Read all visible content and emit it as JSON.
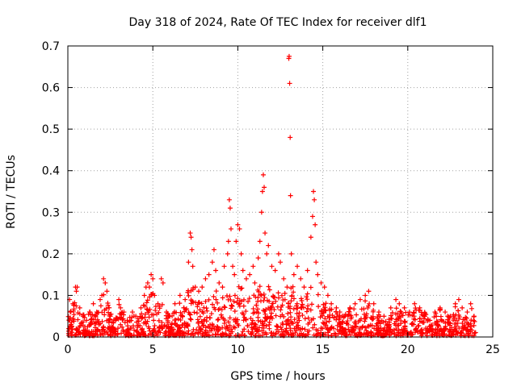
{
  "chart_data": {
    "type": "scatter",
    "title": "Day 318 of 2024, Rate Of TEC Index for receiver dlf1",
    "xlabel": "GPS time / hours",
    "ylabel": "ROTI / TECUs",
    "xlim": [
      0,
      25
    ],
    "ylim": [
      0,
      0.7
    ],
    "x_ticks": [
      0,
      5,
      10,
      15,
      20,
      25
    ],
    "y_ticks": [
      0,
      0.1,
      0.2,
      0.3,
      0.4,
      0.5,
      0.6,
      0.7
    ],
    "x_tick_labels": [
      "0",
      "5",
      "10",
      "15",
      "20",
      "25"
    ],
    "y_tick_labels": [
      "0",
      "0.1",
      "0.2",
      "0.3",
      "0.4",
      "0.5",
      "0.6",
      "0.7"
    ],
    "grid": true,
    "legend": "none",
    "marker": "plus",
    "series_color": "#ff0000",
    "points": [
      [
        0.05,
        0.02
      ],
      [
        0.1,
        0.09
      ],
      [
        0.15,
        0.06
      ],
      [
        0.3,
        0.08
      ],
      [
        0.45,
        0.12
      ],
      [
        0.5,
        0.11
      ],
      [
        0.55,
        0.12
      ],
      [
        0.7,
        0.07
      ],
      [
        0.9,
        0.05
      ],
      [
        1.1,
        0.04
      ],
      [
        1.3,
        0.06
      ],
      [
        1.5,
        0.08
      ],
      [
        1.7,
        0.06
      ],
      [
        1.9,
        0.09
      ],
      [
        2.0,
        0.1
      ],
      [
        2.1,
        0.14
      ],
      [
        2.2,
        0.13
      ],
      [
        2.3,
        0.11
      ],
      [
        2.5,
        0.05
      ],
      [
        2.8,
        0.04
      ],
      [
        3.0,
        0.09
      ],
      [
        3.1,
        0.07
      ],
      [
        3.3,
        0.06
      ],
      [
        3.5,
        0.04
      ],
      [
        3.8,
        0.06
      ],
      [
        4.0,
        0.05
      ],
      [
        4.3,
        0.07
      ],
      [
        4.5,
        0.1
      ],
      [
        4.6,
        0.12
      ],
      [
        4.7,
        0.13
      ],
      [
        4.8,
        0.12
      ],
      [
        4.9,
        0.15
      ],
      [
        5.0,
        0.14
      ],
      [
        5.1,
        0.1
      ],
      [
        5.3,
        0.08
      ],
      [
        5.5,
        0.14
      ],
      [
        5.6,
        0.13
      ],
      [
        5.8,
        0.06
      ],
      [
        6.0,
        0.05
      ],
      [
        6.3,
        0.08
      ],
      [
        6.6,
        0.1
      ],
      [
        6.9,
        0.09
      ],
      [
        7.1,
        0.18
      ],
      [
        7.2,
        0.25
      ],
      [
        7.25,
        0.24
      ],
      [
        7.3,
        0.21
      ],
      [
        7.35,
        0.17
      ],
      [
        7.5,
        0.12
      ],
      [
        7.7,
        0.11
      ],
      [
        7.9,
        0.12
      ],
      [
        8.1,
        0.14
      ],
      [
        8.3,
        0.15
      ],
      [
        8.5,
        0.18
      ],
      [
        8.6,
        0.21
      ],
      [
        8.7,
        0.16
      ],
      [
        8.9,
        0.13
      ],
      [
        9.1,
        0.12
      ],
      [
        9.2,
        0.17
      ],
      [
        9.4,
        0.2
      ],
      [
        9.45,
        0.23
      ],
      [
        9.5,
        0.33
      ],
      [
        9.55,
        0.31
      ],
      [
        9.6,
        0.26
      ],
      [
        9.7,
        0.17
      ],
      [
        9.8,
        0.15
      ],
      [
        9.9,
        0.23
      ],
      [
        10.0,
        0.27
      ],
      [
        10.1,
        0.26
      ],
      [
        10.2,
        0.2
      ],
      [
        10.3,
        0.16
      ],
      [
        10.5,
        0.14
      ],
      [
        10.7,
        0.15
      ],
      [
        10.9,
        0.17
      ],
      [
        11.0,
        0.13
      ],
      [
        11.2,
        0.19
      ],
      [
        11.3,
        0.23
      ],
      [
        11.4,
        0.3
      ],
      [
        11.45,
        0.35
      ],
      [
        11.5,
        0.39
      ],
      [
        11.55,
        0.36
      ],
      [
        11.6,
        0.25
      ],
      [
        11.7,
        0.2
      ],
      [
        11.8,
        0.22
      ],
      [
        12.0,
        0.17
      ],
      [
        12.2,
        0.16
      ],
      [
        12.4,
        0.2
      ],
      [
        12.5,
        0.18
      ],
      [
        12.7,
        0.14
      ],
      [
        12.9,
        0.12
      ],
      [
        13.0,
        0.67
      ],
      [
        13.02,
        0.675
      ],
      [
        13.05,
        0.61
      ],
      [
        13.08,
        0.48
      ],
      [
        13.1,
        0.34
      ],
      [
        13.15,
        0.2
      ],
      [
        13.3,
        0.15
      ],
      [
        13.5,
        0.17
      ],
      [
        13.7,
        0.14
      ],
      [
        13.9,
        0.12
      ],
      [
        14.1,
        0.16
      ],
      [
        14.3,
        0.24
      ],
      [
        14.4,
        0.29
      ],
      [
        14.45,
        0.35
      ],
      [
        14.5,
        0.33
      ],
      [
        14.55,
        0.27
      ],
      [
        14.6,
        0.18
      ],
      [
        14.7,
        0.15
      ],
      [
        14.9,
        0.13
      ],
      [
        15.1,
        0.12
      ],
      [
        15.3,
        0.1
      ],
      [
        15.5,
        0.08
      ],
      [
        15.8,
        0.07
      ],
      [
        16.0,
        0.06
      ],
      [
        16.3,
        0.05
      ],
      [
        16.6,
        0.07
      ],
      [
        16.9,
        0.08
      ],
      [
        17.2,
        0.09
      ],
      [
        17.5,
        0.1
      ],
      [
        17.7,
        0.11
      ],
      [
        18.0,
        0.08
      ],
      [
        18.3,
        0.06
      ],
      [
        18.6,
        0.05
      ],
      [
        19.0,
        0.07
      ],
      [
        19.3,
        0.09
      ],
      [
        19.5,
        0.08
      ],
      [
        19.8,
        0.07
      ],
      [
        20.1,
        0.06
      ],
      [
        20.4,
        0.08
      ],
      [
        20.7,
        0.07
      ],
      [
        21.0,
        0.05
      ],
      [
        21.3,
        0.04
      ],
      [
        21.6,
        0.06
      ],
      [
        21.9,
        0.07
      ],
      [
        22.2,
        0.06
      ],
      [
        22.5,
        0.05
      ],
      [
        22.8,
        0.08
      ],
      [
        23.0,
        0.09
      ],
      [
        23.2,
        0.07
      ],
      [
        23.5,
        0.06
      ],
      [
        23.7,
        0.08
      ],
      [
        23.9,
        0.05
      ]
    ]
  }
}
